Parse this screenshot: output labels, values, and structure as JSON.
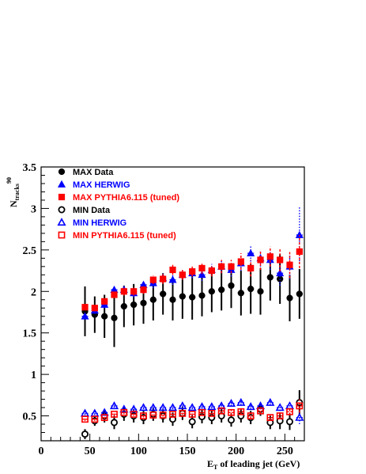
{
  "chart_data": {
    "type": "scatter",
    "title": "",
    "xlabel": {
      "main": "E",
      "sub": "T",
      "rest": " of leading jet (GeV)"
    },
    "ylabel": {
      "main": "N",
      "sub": "tracks",
      "sup": "90"
    },
    "xlim": [
      0,
      270
    ],
    "ylim": [
      0.2,
      3.5
    ],
    "x_ticks": [
      0,
      50,
      100,
      150,
      200,
      250
    ],
    "y_ticks": [
      0.5,
      1,
      1.5,
      2,
      2.5,
      3,
      3.5
    ],
    "y_tick_labels": [
      "0.5",
      "1",
      "1.5",
      "2",
      "2.5",
      "3",
      "3.5"
    ],
    "legend_position": "top-left",
    "x": [
      45,
      55,
      65,
      75,
      85,
      95,
      105,
      115,
      125,
      135,
      145,
      155,
      165,
      175,
      185,
      195,
      205,
      215,
      225,
      235,
      245,
      255,
      265
    ],
    "series": [
      {
        "name": "MAX Data",
        "marker": "filled-circle",
        "color": "#000000",
        "values": [
          1.76,
          1.72,
          1.7,
          1.68,
          1.82,
          1.84,
          1.86,
          1.9,
          1.97,
          1.9,
          1.94,
          1.93,
          1.95,
          2.0,
          2.02,
          2.07,
          1.98,
          2.03,
          2.0,
          2.17,
          2.15,
          1.92,
          1.97
        ],
        "errors": [
          0.3,
          0.22,
          0.26,
          0.35,
          0.25,
          0.25,
          0.25,
          0.25,
          0.25,
          0.25,
          0.27,
          0.27,
          0.25,
          0.25,
          0.25,
          0.27,
          0.27,
          0.3,
          0.28,
          0.28,
          0.3,
          0.28,
          0.3
        ]
      },
      {
        "name": "MAX HERWIG",
        "marker": "filled-triangle",
        "color": "#0000ff",
        "values": [
          1.7,
          1.77,
          1.84,
          2.02,
          2.02,
          1.98,
          2.08,
          2.1,
          2.16,
          2.14,
          2.2,
          2.22,
          2.2,
          2.26,
          2.3,
          2.26,
          2.34,
          2.46,
          2.4,
          2.38,
          2.22,
          2.3,
          2.68
        ],
        "errors": [
          0.03,
          0.04,
          0.04,
          0.04,
          0.05,
          0.05,
          0.05,
          0.06,
          0.06,
          0.06,
          0.06,
          0.06,
          0.07,
          0.07,
          0.08,
          0.08,
          0.09,
          0.1,
          0.1,
          0.12,
          0.15,
          0.15,
          0.35
        ]
      },
      {
        "name": "MAX PYTHIA6.115 (tuned)",
        "marker": "filled-square",
        "color": "#ff0000",
        "values": [
          1.81,
          1.8,
          1.88,
          1.96,
          2.0,
          2.0,
          2.02,
          2.14,
          2.15,
          2.26,
          2.2,
          2.24,
          2.28,
          2.25,
          2.3,
          2.3,
          2.36,
          2.28,
          2.38,
          2.42,
          2.38,
          2.32,
          2.48
        ],
        "errors": [
          0.03,
          0.04,
          0.04,
          0.04,
          0.05,
          0.05,
          0.05,
          0.05,
          0.06,
          0.06,
          0.06,
          0.06,
          0.07,
          0.07,
          0.08,
          0.08,
          0.1,
          0.1,
          0.12,
          0.12,
          0.14,
          0.16,
          0.2
        ]
      },
      {
        "name": "MIN Data",
        "marker": "open-circle",
        "color": "#000000",
        "values": [
          0.28,
          0.44,
          0.5,
          0.42,
          0.52,
          0.5,
          0.48,
          0.52,
          0.5,
          0.46,
          0.53,
          0.43,
          0.49,
          0.48,
          0.5,
          0.45,
          0.5,
          0.48,
          0.58,
          0.42,
          0.44,
          0.43,
          0.66
        ],
        "errors": [
          0.06,
          0.06,
          0.08,
          0.08,
          0.08,
          0.08,
          0.08,
          0.08,
          0.08,
          0.08,
          0.08,
          0.08,
          0.08,
          0.08,
          0.08,
          0.08,
          0.08,
          0.08,
          0.08,
          0.08,
          0.1,
          0.1,
          0.15
        ]
      },
      {
        "name": "MIN HERWIG",
        "marker": "open-triangle",
        "color": "#0000ff",
        "values": [
          0.53,
          0.53,
          0.54,
          0.62,
          0.58,
          0.58,
          0.6,
          0.6,
          0.6,
          0.6,
          0.62,
          0.6,
          0.61,
          0.61,
          0.62,
          0.65,
          0.66,
          0.61,
          0.62,
          0.66,
          0.6,
          0.62,
          0.48
        ],
        "errors": [
          0.02,
          0.02,
          0.02,
          0.02,
          0.02,
          0.02,
          0.02,
          0.02,
          0.02,
          0.02,
          0.02,
          0.02,
          0.02,
          0.02,
          0.03,
          0.03,
          0.03,
          0.03,
          0.03,
          0.03,
          0.04,
          0.04,
          0.08
        ]
      },
      {
        "name": "MIN PYTHIA6.115 (tuned)",
        "marker": "open-square",
        "color": "#ff0000",
        "values": [
          0.46,
          0.46,
          0.48,
          0.52,
          0.54,
          0.52,
          0.5,
          0.51,
          0.51,
          0.52,
          0.53,
          0.52,
          0.54,
          0.53,
          0.56,
          0.54,
          0.55,
          0.5,
          0.56,
          0.48,
          0.5,
          0.55,
          0.62
        ],
        "errors": [
          0.02,
          0.02,
          0.02,
          0.02,
          0.02,
          0.02,
          0.02,
          0.02,
          0.02,
          0.02,
          0.02,
          0.02,
          0.02,
          0.02,
          0.03,
          0.03,
          0.03,
          0.03,
          0.03,
          0.03,
          0.04,
          0.04,
          0.08
        ]
      }
    ]
  }
}
